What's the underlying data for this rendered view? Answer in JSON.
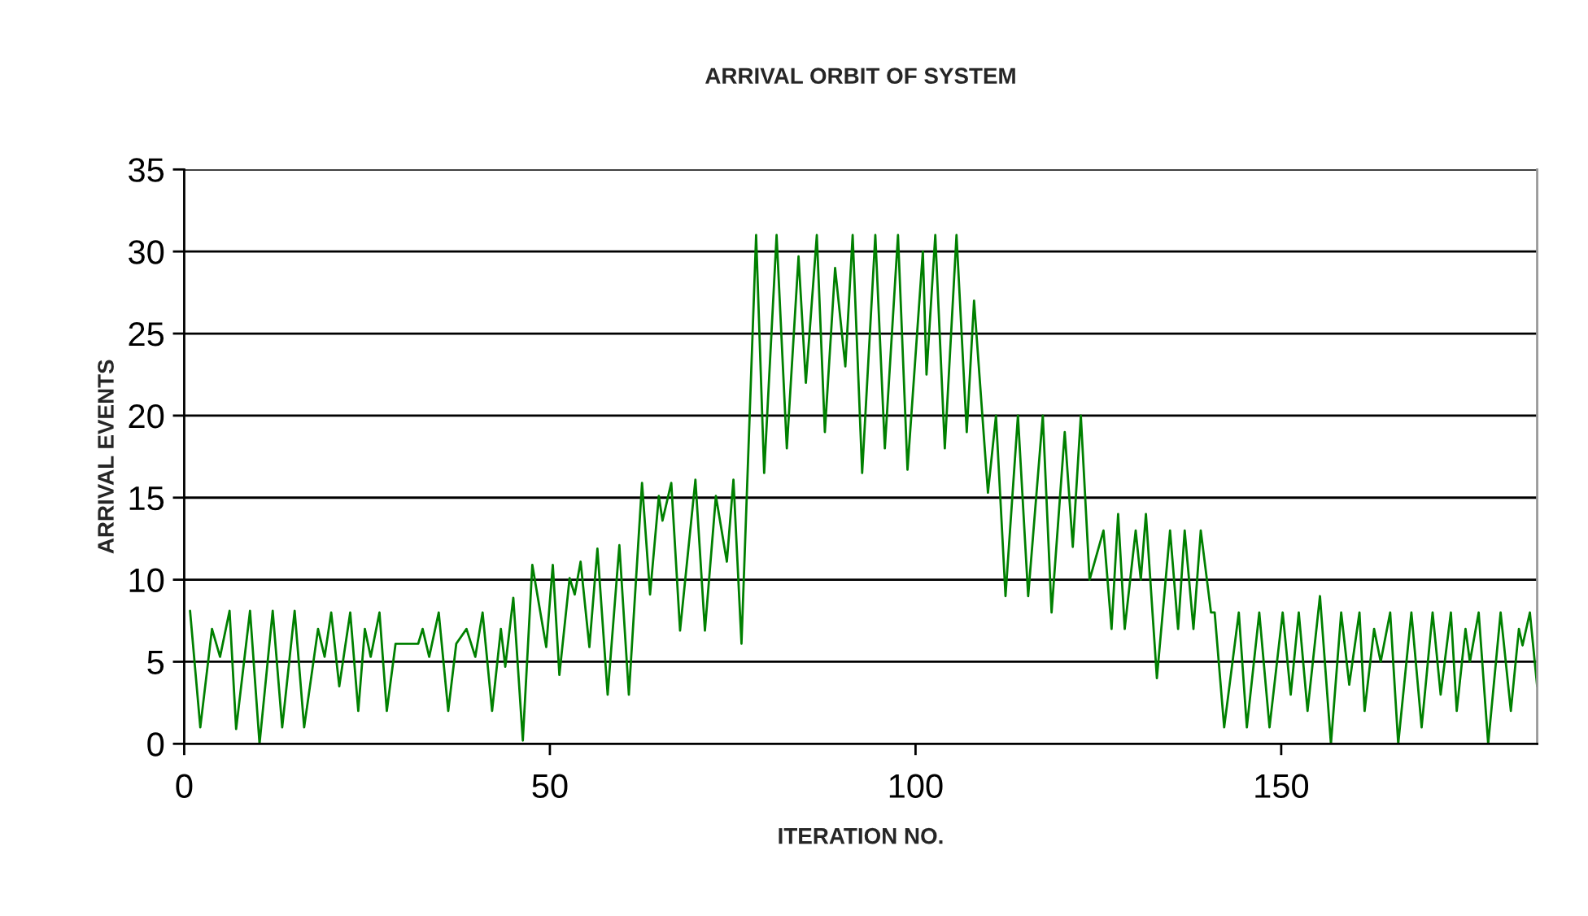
{
  "chart_data": {
    "type": "line",
    "title": "ARRIVAL ORBIT OF SYSTEM",
    "xlabel": "ITERATION NO.",
    "ylabel": "ARRIVAL EVENTS",
    "xlim": [
      0,
      185
    ],
    "xticks": [
      0,
      50,
      100,
      150
    ],
    "ylim": [
      0,
      35
    ],
    "yticks": [
      0,
      5,
      10,
      15,
      20,
      25,
      30,
      35
    ],
    "grid": "y",
    "marker": "none",
    "line_style": "solid",
    "series": [
      {
        "color": "#008000",
        "x": [
          0.8,
          2.2,
          3.8,
          4.9,
          6.2,
          7.1,
          9,
          10.3,
          12.1,
          13.4,
          15.1,
          16.4,
          18.3,
          19.2,
          20.1,
          21.2,
          22.7,
          23.8,
          24.7,
          25.5,
          26.7,
          27.7,
          28.9,
          32,
          32.6,
          33.5,
          34.8,
          36.1,
          37.2,
          38.6,
          39.8,
          40.8,
          42.1,
          43.3,
          43.9,
          45,
          46.3,
          47.6,
          49.5,
          50.4,
          51.3,
          52.7,
          53.4,
          54.2,
          55.4,
          56.5,
          57.9,
          59.5,
          60.8,
          62.6,
          63.7,
          64.9,
          65.4,
          66.6,
          67.8,
          69.9,
          71.2,
          72.7,
          74.2,
          75.1,
          76.2,
          78.2,
          79.3,
          81,
          82.4,
          84,
          85,
          86.5,
          87.6,
          89,
          90.4,
          91.4,
          92.7,
          94.5,
          95.8,
          97.6,
          98.9,
          101,
          101.5,
          102.7,
          104,
          105.6,
          107,
          108,
          109.9,
          111,
          112.3,
          114,
          115.4,
          117.4,
          118.6,
          120.4,
          121.5,
          122.6,
          123.8,
          125.7,
          126.8,
          127.7,
          128.6,
          130.1,
          130.8,
          131.5,
          133,
          134.8,
          135.9,
          136.8,
          138,
          139,
          140.4,
          140.9,
          142.2,
          144.2,
          145.3,
          147,
          148.4,
          150.2,
          151.3,
          152.4,
          153.6,
          155.3,
          156.8,
          158.2,
          159.3,
          160.7,
          161.4,
          162.7,
          163.6,
          164.9,
          166,
          167.8,
          169.2,
          170.7,
          171.8,
          173.2,
          174,
          175.2,
          175.8,
          177,
          178.3,
          180,
          181.4,
          182.5,
          183,
          184,
          185
        ],
        "values": [
          8.1,
          1,
          7,
          5.3,
          8.1,
          0.9,
          8.1,
          0,
          8.1,
          1,
          8.1,
          1,
          7,
          5.3,
          8,
          3.5,
          8,
          2,
          7,
          5.3,
          8,
          2,
          6.1,
          6.1,
          7,
          5.3,
          8,
          2,
          6.1,
          7,
          5.3,
          8,
          2,
          7,
          4.7,
          8.9,
          0.2,
          10.9,
          5.9,
          10.9,
          4.2,
          10.1,
          9.1,
          11.1,
          5.9,
          11.9,
          3,
          12.1,
          3,
          15.9,
          9.1,
          15.1,
          13.6,
          15.9,
          6.9,
          16.1,
          6.9,
          15.1,
          11.1,
          16.1,
          6.1,
          31,
          16.5,
          31,
          18,
          29.7,
          22,
          31,
          19,
          29,
          23,
          31,
          16.5,
          31,
          18,
          31,
          16.7,
          30,
          22.5,
          31,
          18,
          31,
          19,
          27,
          15.3,
          20,
          9,
          20,
          9,
          20,
          8,
          19,
          12,
          20,
          10,
          13,
          7,
          14,
          7,
          13,
          10,
          14,
          4,
          13,
          7,
          13,
          7,
          13,
          8,
          8,
          1,
          8,
          1,
          8,
          1,
          8,
          3,
          8,
          2,
          9,
          0,
          8,
          3.6,
          8,
          2,
          7,
          5,
          8,
          0,
          8,
          1,
          8,
          3,
          8,
          2,
          7,
          5,
          8,
          0,
          8,
          2,
          7,
          6,
          8,
          3.5
        ]
      }
    ]
  }
}
